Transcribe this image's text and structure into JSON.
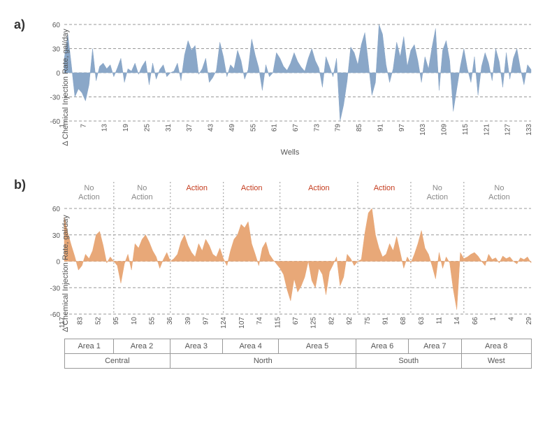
{
  "panel_a": {
    "label": "a)",
    "type": "area",
    "ylabel": "Δ Chemical Injection Rate, gal/day",
    "xlabel": "Wells",
    "ylim": [
      -60,
      60
    ],
    "ytick_step": 30,
    "yticks": [
      -60,
      -30,
      0,
      30,
      60
    ],
    "xticks": [
      1,
      7,
      13,
      19,
      25,
      31,
      37,
      43,
      49,
      55,
      61,
      67,
      73,
      79,
      85,
      91,
      97,
      103,
      109,
      115,
      121,
      127,
      133
    ],
    "xtick_rotation": 90,
    "series_color": "#8aa7c8",
    "grid_color": "#999999",
    "grid_dash": "4,3",
    "background_color": "#ffffff",
    "label_fontsize": 11,
    "tick_fontsize": 10,
    "values": [
      18,
      48,
      10,
      -30,
      -20,
      -25,
      -35,
      -15,
      30,
      -10,
      8,
      12,
      5,
      10,
      -5,
      6,
      18,
      -12,
      5,
      2,
      12,
      -2,
      8,
      15,
      -15,
      12,
      -8,
      4,
      10,
      -5,
      0,
      2,
      12,
      -10,
      22,
      40,
      28,
      34,
      -2,
      5,
      18,
      -12,
      -6,
      3,
      38,
      20,
      -5,
      10,
      5,
      28,
      15,
      -8,
      4,
      42,
      22,
      6,
      -22,
      10,
      -5,
      0,
      25,
      18,
      8,
      3,
      12,
      25,
      14,
      7,
      2,
      18,
      30,
      15,
      6,
      -18,
      20,
      8,
      -5,
      18,
      -60,
      -40,
      -10,
      32,
      25,
      10,
      35,
      50,
      12,
      -28,
      -12,
      60,
      48,
      10,
      -12,
      5,
      38,
      20,
      45,
      8,
      28,
      35,
      15,
      -12,
      20,
      5,
      32,
      55,
      -22,
      28,
      40,
      15,
      -48,
      -20,
      8,
      30,
      5,
      -12,
      20,
      -28,
      8,
      25,
      12,
      -10,
      30,
      14,
      -18,
      25,
      -8,
      18,
      30,
      5,
      -15,
      10,
      4
    ]
  },
  "panel_b": {
    "label": "b)",
    "type": "area",
    "ylabel": "Δ Chemical Injection Rate, gal/day",
    "ylim": [
      -60,
      60
    ],
    "ytick_step": 30,
    "yticks": [
      -60,
      -30,
      0,
      30,
      60
    ],
    "xticks": [
      117,
      83,
      52,
      95,
      10,
      55,
      36,
      39,
      97,
      124,
      107,
      74,
      115,
      67,
      125,
      82,
      92,
      75,
      91,
      68,
      63,
      11,
      14,
      66,
      1,
      4,
      29
    ],
    "xtick_rotation": 90,
    "series_color": "#e8a878",
    "grid_color": "#999999",
    "grid_dash": "4,3",
    "vertical_divider_dash": "2,3",
    "vertical_divider_color": "#999999",
    "background_color": "#ffffff",
    "label_fontsize": 11,
    "tick_fontsize": 10,
    "action_color": "#c43b1d",
    "noaction_color": "#888888",
    "annotation_fontsize": 11,
    "areas": [
      {
        "name": "Area 1",
        "action": "No Action",
        "count": 14,
        "region": "Central"
      },
      {
        "name": "Area 2",
        "action": "No Action",
        "count": 16,
        "region": "Central"
      },
      {
        "name": "Area 3",
        "action": "Action",
        "count": 15,
        "region": "North"
      },
      {
        "name": "Area 4",
        "action": "Action",
        "count": 16,
        "region": "North"
      },
      {
        "name": "Area 5",
        "action": "Action",
        "count": 22,
        "region": "North"
      },
      {
        "name": "Area 6",
        "action": "Action",
        "count": 15,
        "region": "South"
      },
      {
        "name": "Area 7",
        "action": "No Action",
        "count": 15,
        "region": "South"
      },
      {
        "name": "Area 8",
        "action": "No Action",
        "count": 20,
        "region": "West"
      }
    ],
    "regions": [
      {
        "name": "Central",
        "span": 30
      },
      {
        "name": "North",
        "span": 53
      },
      {
        "name": "South",
        "span": 30
      },
      {
        "name": "West",
        "span": 20
      }
    ],
    "values": [
      50,
      32,
      18,
      5,
      -10,
      -5,
      8,
      3,
      12,
      30,
      34,
      18,
      -2,
      5,
      0,
      -5,
      -25,
      -3,
      8,
      -10,
      20,
      15,
      25,
      30,
      22,
      12,
      5,
      -8,
      2,
      10,
      0,
      3,
      8,
      22,
      30,
      18,
      10,
      5,
      20,
      12,
      25,
      18,
      8,
      5,
      15,
      3,
      -5,
      12,
      25,
      30,
      42,
      38,
      45,
      20,
      8,
      -5,
      15,
      22,
      8,
      2,
      -3,
      -8,
      -15,
      -32,
      -45,
      -20,
      -35,
      -28,
      -18,
      0,
      -22,
      -30,
      -8,
      -15,
      -38,
      -12,
      -4,
      5,
      -28,
      -18,
      8,
      3,
      -5,
      0,
      2,
      32,
      55,
      60,
      30,
      15,
      5,
      8,
      20,
      12,
      28,
      10,
      -8,
      5,
      -2,
      8,
      20,
      35,
      15,
      8,
      -5,
      -20,
      10,
      -8,
      5,
      -2,
      -32,
      -55,
      10,
      3,
      5,
      8,
      10,
      6,
      0,
      -5,
      8,
      2,
      4,
      -2,
      6,
      3,
      5,
      0,
      -3,
      4,
      2,
      5,
      -2
    ]
  }
}
